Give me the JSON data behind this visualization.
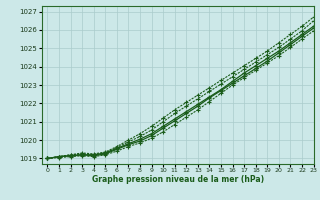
{
  "xlabel": "Graphe pression niveau de la mer (hPa)",
  "xlim": [
    -0.5,
    23
  ],
  "ylim": [
    1018.7,
    1027.3
  ],
  "yticks": [
    1019,
    1020,
    1021,
    1022,
    1023,
    1024,
    1025,
    1026,
    1027
  ],
  "xticks": [
    0,
    1,
    2,
    3,
    4,
    5,
    6,
    7,
    8,
    9,
    10,
    11,
    12,
    13,
    14,
    15,
    16,
    17,
    18,
    19,
    20,
    21,
    22,
    23
  ],
  "background_color": "#cce8e8",
  "grid_color": "#aacccc",
  "line_color": "#1a5c1a",
  "line1": [
    1019.0,
    1019.1,
    1019.15,
    1019.2,
    1019.2,
    1019.3,
    1019.55,
    1019.8,
    1020.05,
    1020.35,
    1020.75,
    1021.15,
    1021.55,
    1021.95,
    1022.35,
    1022.75,
    1023.2,
    1023.65,
    1024.05,
    1024.45,
    1024.85,
    1025.3,
    1025.75,
    1026.2
  ],
  "line2": [
    1019.0,
    1019.1,
    1019.15,
    1019.2,
    1019.15,
    1019.25,
    1019.5,
    1019.75,
    1019.95,
    1020.25,
    1020.65,
    1021.05,
    1021.45,
    1021.85,
    1022.3,
    1022.7,
    1023.1,
    1023.5,
    1023.9,
    1024.3,
    1024.75,
    1025.2,
    1025.65,
    1026.1
  ],
  "line3": [
    1019.0,
    1019.05,
    1019.1,
    1019.15,
    1019.1,
    1019.2,
    1019.4,
    1019.65,
    1019.85,
    1020.1,
    1020.45,
    1020.85,
    1021.25,
    1021.65,
    1022.1,
    1022.55,
    1023.0,
    1023.4,
    1023.8,
    1024.2,
    1024.6,
    1025.05,
    1025.5,
    1025.95
  ],
  "line4": [
    1019.0,
    1019.1,
    1019.2,
    1019.25,
    1019.2,
    1019.3,
    1019.6,
    1019.9,
    1020.2,
    1020.55,
    1021.0,
    1021.45,
    1021.85,
    1022.25,
    1022.65,
    1023.05,
    1023.45,
    1023.85,
    1024.25,
    1024.65,
    1025.05,
    1025.5,
    1025.95,
    1026.5
  ],
  "line5": [
    1019.0,
    1019.1,
    1019.2,
    1019.3,
    1019.25,
    1019.35,
    1019.65,
    1020.0,
    1020.35,
    1020.75,
    1021.2,
    1021.65,
    1022.05,
    1022.45,
    1022.85,
    1023.25,
    1023.65,
    1024.05,
    1024.45,
    1024.85,
    1025.3,
    1025.75,
    1026.2,
    1026.7
  ]
}
